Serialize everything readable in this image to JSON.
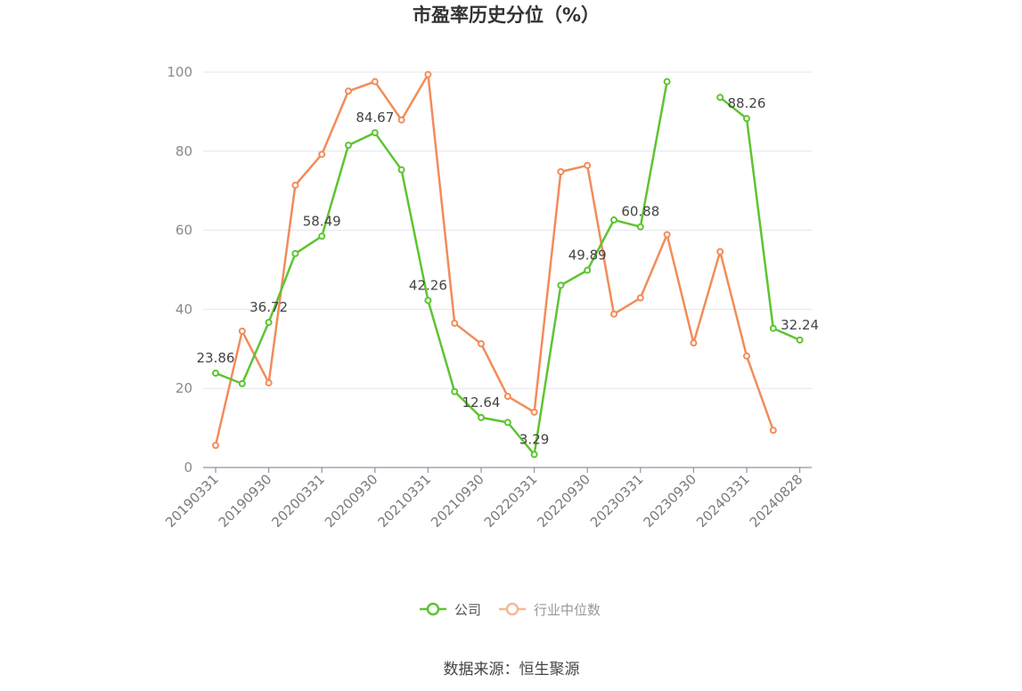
{
  "chart_data": {
    "type": "line",
    "title": "市盈率历史分位（%）",
    "ylim": [
      0,
      100
    ],
    "yticks": [
      0,
      20,
      40,
      60,
      80,
      100
    ],
    "grid": true,
    "legend_placement": "bottom-center",
    "x_tick_labels": [
      "20190331",
      "20190930",
      "20200331",
      "20200930",
      "20210331",
      "20210930",
      "20220331",
      "20220930",
      "20230331",
      "20230930",
      "20240331",
      "20240828"
    ],
    "x": [
      "20190331",
      "20190630",
      "20190930",
      "20191231",
      "20200331",
      "20200630",
      "20200930",
      "20201231",
      "20210331",
      "20210630",
      "20210930",
      "20211231",
      "20220331",
      "20220630",
      "20220930",
      "20221231",
      "20230331",
      "20230630",
      "20230930",
      "20231231",
      "20240331",
      "20240630",
      "20240828"
    ],
    "series": [
      {
        "name": "公司",
        "color": "#5ec431",
        "values": [
          23.86,
          21.2,
          36.72,
          54.1,
          58.49,
          81.5,
          84.67,
          75.3,
          42.26,
          19.2,
          12.64,
          11.4,
          3.29,
          46.1,
          49.89,
          62.6,
          60.88,
          97.6,
          null,
          93.6,
          88.26,
          35.2,
          32.24
        ],
        "labels": {
          "0": "23.86",
          "2": "36.72",
          "4": "58.49",
          "6": "84.67",
          "8": "42.26",
          "10": "12.64",
          "12": "3.29",
          "14": "49.89",
          "16": "60.88",
          "20": "88.26",
          "22": "32.24"
        }
      },
      {
        "name": "行业中位数",
        "color": "#f28c5a",
        "values": [
          5.6,
          34.5,
          21.4,
          71.4,
          79.2,
          95.2,
          97.6,
          87.9,
          99.4,
          36.5,
          31.3,
          18.0,
          14.0,
          74.8,
          76.4,
          38.8,
          42.9,
          58.9,
          31.5,
          54.6,
          28.2,
          9.4,
          null
        ]
      }
    ]
  },
  "legend": {
    "items": [
      {
        "label": "公司",
        "color": "#5ec431",
        "text_color": "#555555"
      },
      {
        "label": "行业中位数",
        "color": "#f5b89a",
        "text_color": "#999999"
      }
    ]
  },
  "source_text": "数据来源：恒生聚源"
}
